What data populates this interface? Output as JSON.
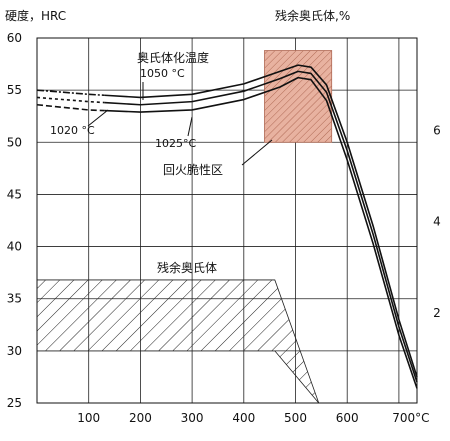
{
  "chart_data": {
    "type": "line",
    "y_left_label": "硬度，HRC",
    "y_right_label": "残余奥氏体,%",
    "x_unit": "°C",
    "x_ticks": [
      100,
      200,
      300,
      400,
      500,
      600,
      700
    ],
    "x_tick_labels": [
      "100",
      "200",
      "300",
      "400",
      "500",
      "600",
      "700°C"
    ],
    "x_range": [
      0,
      735
    ],
    "y_ticks": [
      25,
      30,
      35,
      40,
      45,
      50,
      55,
      60
    ],
    "y_tick_labels": [
      "25",
      "30",
      "35",
      "40",
      "45",
      "50",
      "55",
      "60"
    ],
    "y_range": [
      25,
      60
    ],
    "y_right_ticks": [
      2,
      4,
      6
    ],
    "y_right_tick_labels": [
      "2",
      "4",
      "6"
    ],
    "y_right_range": [
      0,
      8
    ],
    "grid": true,
    "annotations": {
      "quench_temp_title": "奥氏体化温度",
      "temp_1050": "1050 °C",
      "temp_1025": "1025°C",
      "temp_1020": "1020 °C",
      "temper_brittle_zone": "回火脆性区",
      "retained_austenite": "残余奥氏体"
    },
    "series": [
      {
        "temp": "1050 °C",
        "points": [
          [
            0,
            55.0
          ],
          [
            100,
            54.6
          ],
          [
            200,
            54.3
          ],
          [
            300,
            54.6
          ],
          [
            400,
            55.6
          ],
          [
            470,
            56.8
          ],
          [
            505,
            57.4
          ],
          [
            530,
            57.2
          ],
          [
            560,
            55.5
          ],
          [
            600,
            50.0
          ],
          [
            650,
            42.0
          ],
          [
            700,
            33.0
          ],
          [
            735,
            27.5
          ]
        ]
      },
      {
        "temp": "1025°C",
        "points": [
          [
            0,
            54.3
          ],
          [
            100,
            53.9
          ],
          [
            200,
            53.6
          ],
          [
            300,
            53.9
          ],
          [
            400,
            54.9
          ],
          [
            470,
            56.1
          ],
          [
            505,
            56.8
          ],
          [
            530,
            56.6
          ],
          [
            560,
            54.8
          ],
          [
            600,
            49.2
          ],
          [
            650,
            41.2
          ],
          [
            700,
            32.3
          ],
          [
            735,
            27.0
          ]
        ]
      },
      {
        "temp": "1020 °C",
        "points": [
          [
            0,
            53.6
          ],
          [
            100,
            53.1
          ],
          [
            200,
            52.9
          ],
          [
            300,
            53.1
          ],
          [
            400,
            54.1
          ],
          [
            470,
            55.3
          ],
          [
            505,
            56.2
          ],
          [
            530,
            56.0
          ],
          [
            560,
            54.0
          ],
          [
            600,
            48.3
          ],
          [
            650,
            40.3
          ],
          [
            700,
            31.5
          ],
          [
            735,
            26.4
          ]
        ]
      }
    ],
    "temper_brittle_zone_range": {
      "x": [
        440,
        570
      ],
      "y": [
        50.0,
        58.8
      ]
    },
    "retained_austenite_band": {
      "x_start": 0,
      "x_plateau_end": 460,
      "x_end": 545,
      "y": [
        30.0,
        36.8
      ]
    }
  }
}
